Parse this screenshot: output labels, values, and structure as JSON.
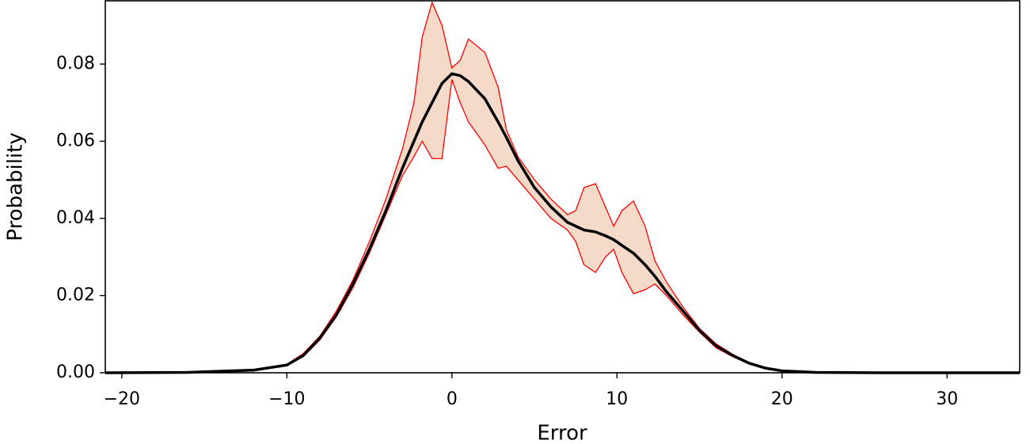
{
  "chart_data": {
    "type": "line",
    "xlabel": "Error",
    "ylabel": "Probability",
    "x": [
      -21,
      -16,
      -12,
      -10,
      -9,
      -8,
      -7,
      -6,
      -5,
      -4,
      -3,
      -2.3,
      -1.8,
      -1.2,
      -0.6,
      0,
      0.5,
      1,
      2,
      2.8,
      3.3,
      4,
      5,
      6,
      7,
      7.5,
      8,
      8.7,
      9.3,
      9.8,
      10.3,
      11,
      11.7,
      12.3,
      13,
      14,
      15,
      16,
      17,
      18,
      19,
      20,
      22,
      26,
      34.4
    ],
    "series": [
      {
        "color": "#000000",
        "values": [
          0,
          0.0001,
          0.0007,
          0.002,
          0.0045,
          0.009,
          0.015,
          0.023,
          0.032,
          0.042,
          0.053,
          0.06,
          0.065,
          0.07,
          0.075,
          0.0775,
          0.077,
          0.0755,
          0.071,
          0.065,
          0.061,
          0.055,
          0.048,
          0.043,
          0.039,
          0.038,
          0.037,
          0.0365,
          0.0355,
          0.0345,
          0.033,
          0.031,
          0.028,
          0.025,
          0.021,
          0.016,
          0.011,
          0.007,
          0.0045,
          0.0025,
          0.0012,
          0.0005,
          0.0001,
          0,
          0
        ]
      }
    ],
    "band": {
      "fill": "#f5d9c9",
      "edge": "#ff0000",
      "upper": [
        0,
        0.0001,
        0.0008,
        0.0022,
        0.005,
        0.0095,
        0.016,
        0.024,
        0.034,
        0.045,
        0.058,
        0.07,
        0.087,
        0.096,
        0.09,
        0.079,
        0.081,
        0.0865,
        0.083,
        0.074,
        0.063,
        0.056,
        0.05,
        0.045,
        0.041,
        0.042,
        0.048,
        0.049,
        0.043,
        0.038,
        0.042,
        0.0445,
        0.038,
        0.029,
        0.0235,
        0.017,
        0.0115,
        0.0075,
        0.0048,
        0.0027,
        0.0013,
        0.0006,
        0.0001,
        0,
        0
      ],
      "lower": [
        0,
        0.0001,
        0.0006,
        0.0018,
        0.0042,
        0.0085,
        0.0145,
        0.022,
        0.031,
        0.041,
        0.051,
        0.056,
        0.06,
        0.0555,
        0.0555,
        0.076,
        0.07,
        0.065,
        0.059,
        0.053,
        0.0535,
        0.05,
        0.045,
        0.04,
        0.037,
        0.034,
        0.028,
        0.026,
        0.03,
        0.032,
        0.026,
        0.0205,
        0.0215,
        0.023,
        0.02,
        0.015,
        0.0105,
        0.0065,
        0.0042,
        0.0023,
        0.0011,
        0.0004,
        0.0001,
        0,
        0
      ]
    },
    "xlim": [
      -21,
      34.4
    ],
    "ylim": [
      0,
      0.0964
    ],
    "xticks": [
      {
        "value": -20,
        "label": "−20"
      },
      {
        "value": -10,
        "label": "−10"
      },
      0,
      10,
      20,
      30
    ],
    "yticks": [
      {
        "value": 0,
        "label": "0.00"
      },
      {
        "value": 0.02,
        "label": "0.02"
      },
      {
        "value": 0.04,
        "label": "0.04"
      },
      {
        "value": 0.06,
        "label": "0.06"
      },
      {
        "value": 0.08,
        "label": "0.08"
      }
    ],
    "grid": false
  }
}
